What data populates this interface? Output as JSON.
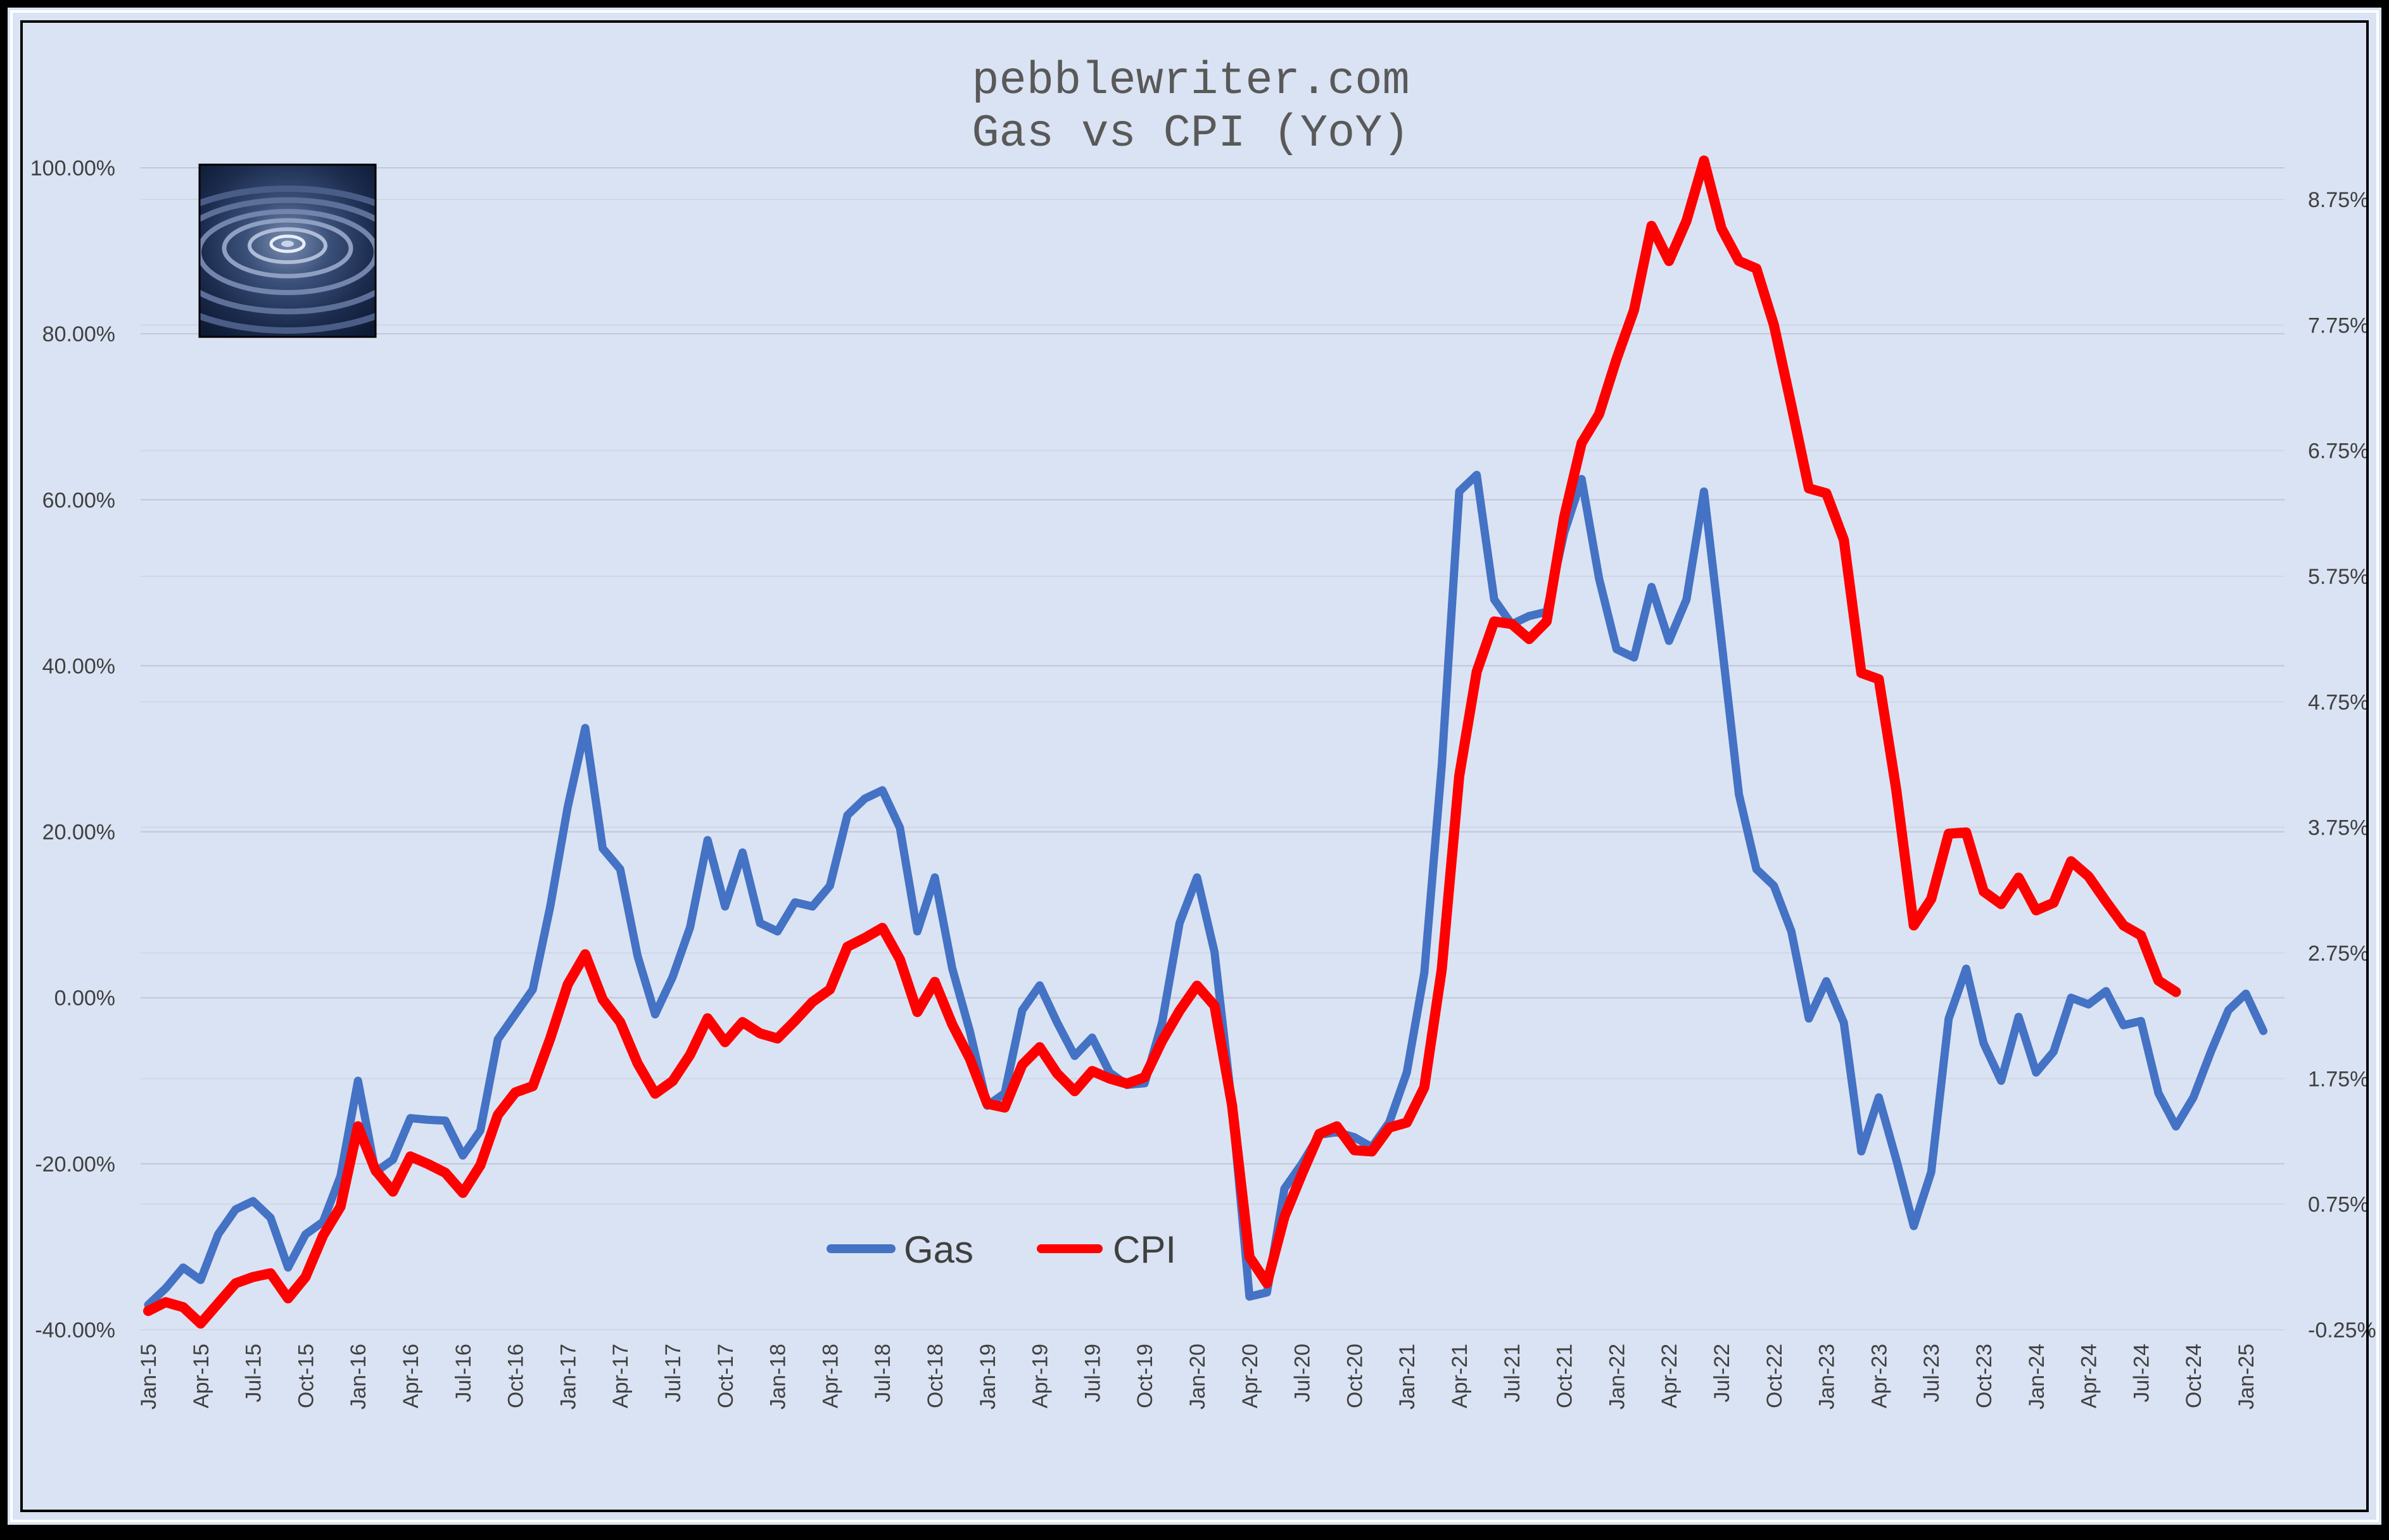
{
  "chart_data": {
    "type": "line",
    "title_lines": [
      "pebblewriter.com",
      "Gas vs CPI (YoY)"
    ],
    "logo": "water-ripple-image",
    "grid": true,
    "legend_position": "bottom-center",
    "colors": {
      "gas": "#4472c4",
      "cpi": "#ff0000",
      "background": "#dae3f3",
      "grid": "#bfc7d5"
    },
    "y_left": {
      "min": -40,
      "max": 100,
      "ticks": [
        "-40.00%",
        "-20.00%",
        "0.00%",
        "20.00%",
        "40.00%",
        "60.00%",
        "80.00%",
        "100.00%"
      ]
    },
    "y_right": {
      "min": -0.25,
      "max": 9.0,
      "ticks": [
        "-0.25%",
        "0.75%",
        "1.75%",
        "2.75%",
        "3.75%",
        "4.75%",
        "5.75%",
        "6.75%",
        "7.75%",
        "8.75%"
      ]
    },
    "x_ticks": [
      "Jan-15",
      "Apr-15",
      "Jul-15",
      "Oct-15",
      "Jan-16",
      "Apr-16",
      "Jul-16",
      "Oct-16",
      "Jan-17",
      "Apr-17",
      "Jul-17",
      "Oct-17",
      "Jan-18",
      "Apr-18",
      "Jul-18",
      "Oct-18",
      "Jan-19",
      "Apr-19",
      "Jul-19",
      "Oct-19",
      "Jan-20",
      "Apr-20",
      "Jul-20",
      "Oct-20",
      "Jan-21",
      "Apr-21",
      "Jul-21",
      "Oct-21",
      "Jan-22",
      "Apr-22",
      "Jul-22",
      "Oct-22",
      "Jan-23",
      "Apr-23",
      "Jul-23",
      "Oct-23",
      "Jan-24",
      "Apr-24",
      "Jul-24",
      "Oct-24",
      "Jan-25"
    ],
    "series": [
      {
        "name": "Gas",
        "axis": "left",
        "start": "Jan-15",
        "values": [
          -37,
          -35,
          -32.5,
          -34,
          -28.5,
          -25.5,
          -24.5,
          -26.5,
          -32.5,
          -28.5,
          -27,
          -21.5,
          -10,
          -21,
          -19.5,
          -14.5,
          -14.7,
          -14.8,
          -19,
          -16,
          -5,
          -2,
          1,
          11,
          23,
          32.5,
          18,
          15.5,
          5,
          -2,
          2.5,
          8.5,
          19,
          11,
          17.5,
          9,
          8,
          11.5,
          11,
          13.5,
          22,
          24,
          25,
          20.5,
          8,
          14.5,
          3.5,
          -4,
          -13,
          -11.5,
          -1.5,
          1.5,
          -3,
          -7,
          -4.8,
          -9,
          -10.5,
          -10.3,
          -3,
          9,
          14.5,
          5.5,
          -13,
          -36,
          -35.5,
          -23,
          -20,
          -16.5,
          -16.2,
          -16.8,
          -18,
          -15,
          -9,
          3,
          28,
          61,
          63,
          48,
          45,
          46,
          46.5,
          56,
          62.5,
          50.5,
          42,
          41,
          49.5,
          43,
          48,
          61,
          43,
          24.5,
          15.5,
          13.5,
          8,
          -2.5,
          2,
          -3,
          -18.5,
          -12,
          -19.5,
          -27.5,
          -21,
          -2.5,
          3.5,
          -5.5,
          -10,
          -2.3,
          -9,
          -6.5,
          0,
          -0.8,
          0.8,
          -3.3,
          -2.8,
          -11.5,
          -15.5,
          -12,
          -6.5,
          -1.5,
          0.5,
          -4
        ]
      },
      {
        "name": "CPI",
        "axis": "right",
        "start": "Jan-15",
        "values": [
          -0.1,
          -0.03,
          -0.07,
          -0.2,
          -0.04,
          0.12,
          0.17,
          0.2,
          0.0,
          0.17,
          0.5,
          0.73,
          1.37,
          1.02,
          0.85,
          1.13,
          1.07,
          1.0,
          0.84,
          1.06,
          1.46,
          1.64,
          1.69,
          2.07,
          2.5,
          2.74,
          2.38,
          2.2,
          1.87,
          1.63,
          1.73,
          1.94,
          2.23,
          2.04,
          2.2,
          2.11,
          2.07,
          2.21,
          2.36,
          2.46,
          2.8,
          2.87,
          2.95,
          2.7,
          2.28,
          2.52,
          2.18,
          1.91,
          1.55,
          1.52,
          1.86,
          2.0,
          1.79,
          1.65,
          1.81,
          1.75,
          1.71,
          1.76,
          2.05,
          2.29,
          2.49,
          2.33,
          1.54,
          0.33,
          0.12,
          0.65,
          0.99,
          1.31,
          1.37,
          1.18,
          1.17,
          1.36,
          1.4,
          1.68,
          2.62,
          4.16,
          4.99,
          5.39,
          5.37,
          5.25,
          5.39,
          6.22,
          6.81,
          7.04,
          7.48,
          7.87,
          8.54,
          8.26,
          8.58,
          9.06,
          8.52,
          8.26,
          8.2,
          7.75,
          7.11,
          6.45,
          6.41,
          6.04,
          4.98,
          4.93,
          4.05,
          2.97,
          3.18,
          3.7,
          3.71,
          3.24,
          3.14,
          3.35,
          3.09,
          3.15,
          3.48,
          3.36,
          3.16,
          2.97,
          2.89,
          2.53,
          2.44
        ]
      }
    ]
  }
}
